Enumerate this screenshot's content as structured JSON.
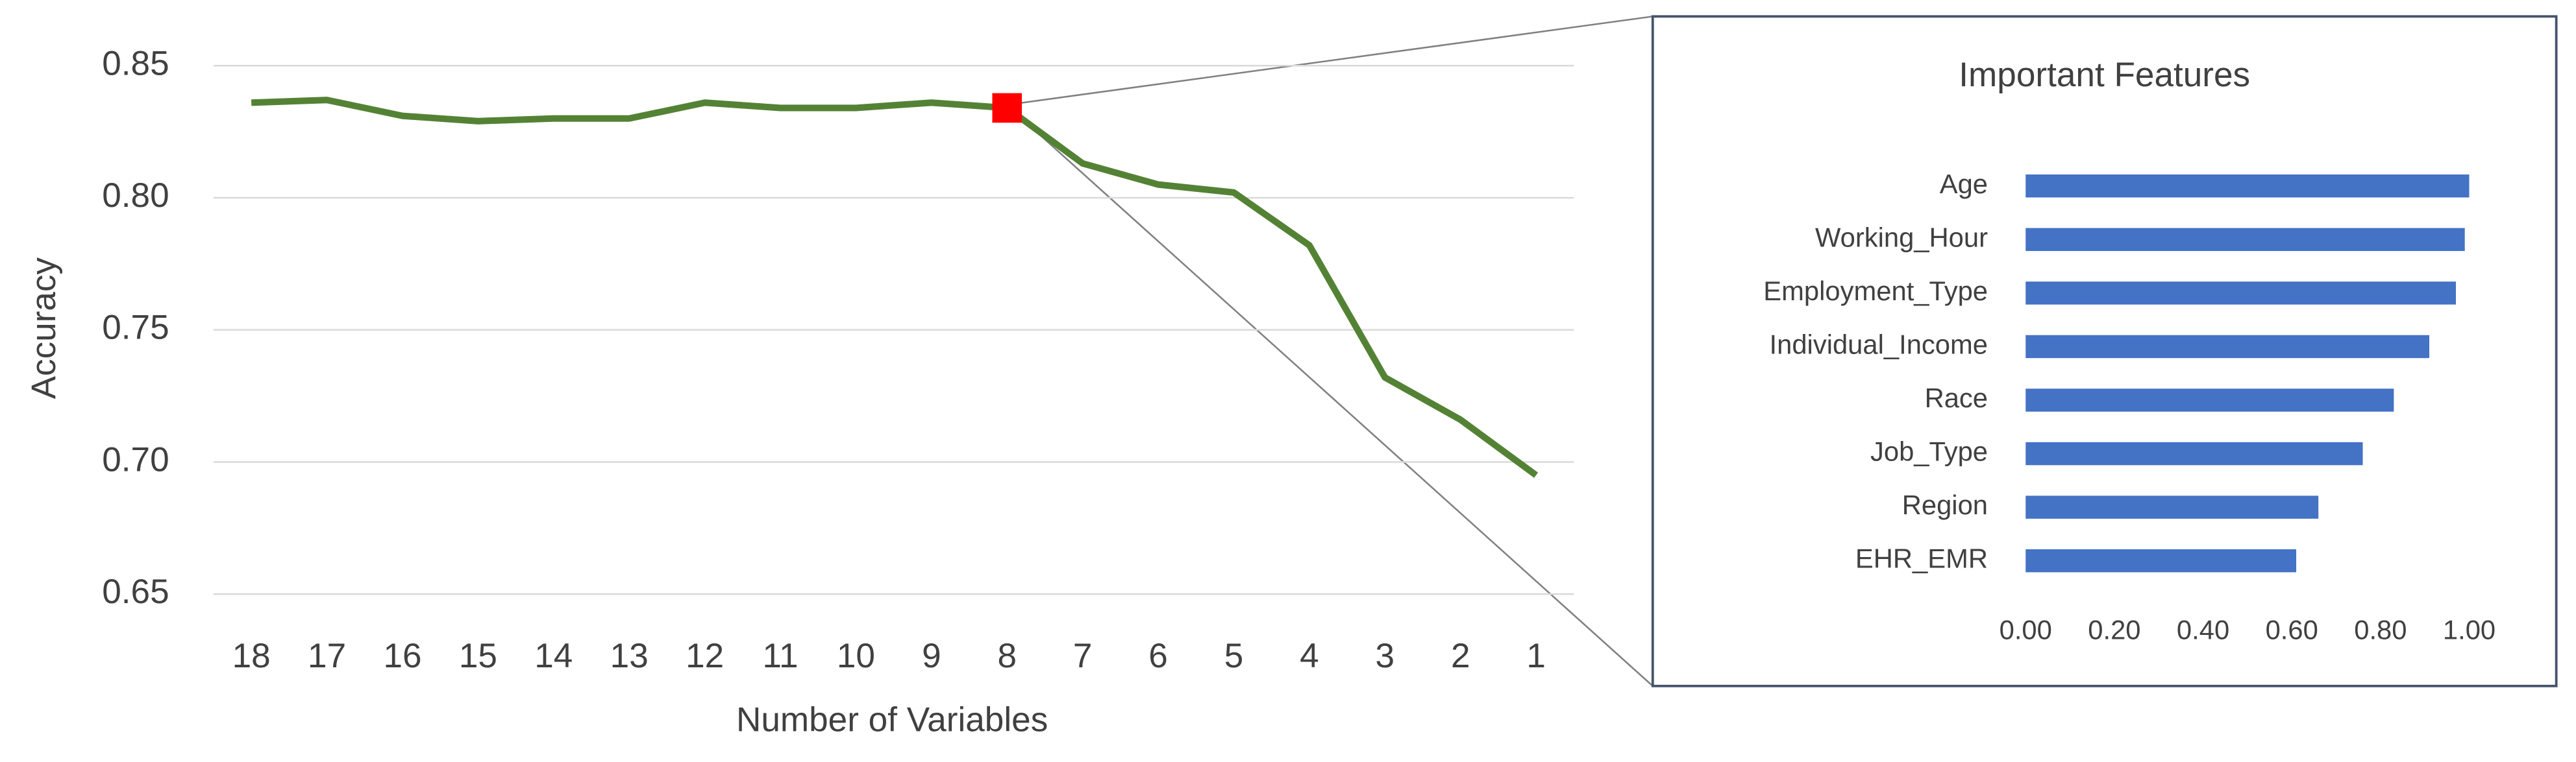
{
  "chart_data": [
    {
      "type": "line",
      "x_label": "Number of Variables",
      "y_label": "Accuracy",
      "categories": [
        "18",
        "17",
        "16",
        "15",
        "14",
        "13",
        "12",
        "11",
        "10",
        "9",
        "8",
        "7",
        "6",
        "5",
        "4",
        "3",
        "2",
        "1"
      ],
      "values": [
        0.836,
        0.837,
        0.831,
        0.829,
        0.83,
        0.83,
        0.836,
        0.834,
        0.834,
        0.836,
        0.834,
        0.813,
        0.805,
        0.802,
        0.782,
        0.732,
        0.716,
        0.695
      ],
      "color": "#548235",
      "highlight": {
        "category": "8",
        "color": "#ff0000"
      },
      "ylim": [
        0.65,
        0.85
      ],
      "yticks": [
        0.65,
        {
          "value": 0.7,
          "label": "0.70"
        },
        0.75,
        {
          "value": 0.8,
          "label": "0.80"
        },
        0.85
      ],
      "grid": true
    },
    {
      "type": "hbar",
      "title": "Important Features",
      "categories": [
        "Age",
        "Working_Hour",
        "Employment_Type",
        "Individual_Income",
        "Race",
        "Job_Type",
        "Region",
        "EHR_EMR"
      ],
      "values": [
        1.0,
        0.99,
        0.97,
        0.91,
        0.83,
        0.76,
        0.66,
        0.61
      ],
      "color": "#4472c4",
      "xlim": [
        0,
        1
      ],
      "xticks": [
        {
          "value": 0,
          "label": "0.00"
        },
        {
          "value": 0.2,
          "label": "0.20"
        },
        {
          "value": 0.4,
          "label": "0.40"
        },
        {
          "value": 0.6,
          "label": "0.60"
        },
        {
          "value": 0.8,
          "label": "0.80"
        },
        {
          "value": 1,
          "label": "1.00"
        }
      ],
      "grid": false
    }
  ]
}
